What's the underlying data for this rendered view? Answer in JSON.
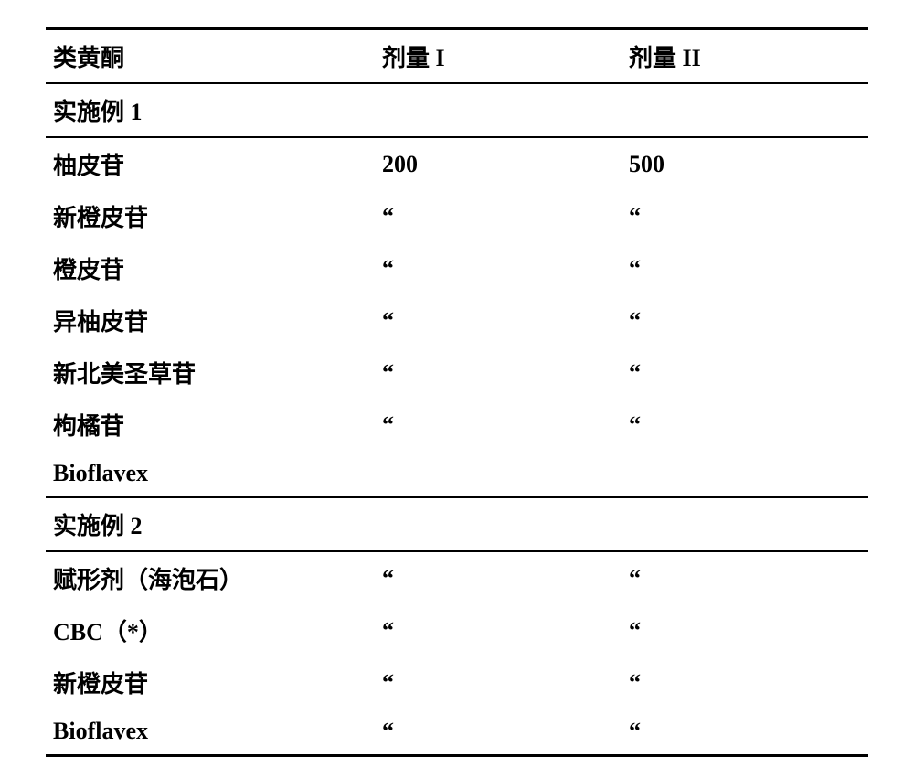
{
  "table": {
    "headers": {
      "col1": "类黄酮",
      "col2": "剂量 I",
      "col3": "剂量 II"
    },
    "section1": {
      "title": "实施例 1",
      "rows": [
        {
          "name": "柚皮苷",
          "dose1": "200",
          "dose2": "500"
        },
        {
          "name": "新橙皮苷",
          "dose1": "“",
          "dose2": "“"
        },
        {
          "name": "橙皮苷",
          "dose1": "“",
          "dose2": "“"
        },
        {
          "name": "异柚皮苷",
          "dose1": "“",
          "dose2": "“"
        },
        {
          "name": "新北美圣草苷",
          "dose1": "“",
          "dose2": "“"
        },
        {
          "name": "枸橘苷",
          "dose1": "“",
          "dose2": "“"
        },
        {
          "name": "Bioflavex",
          "dose1": "",
          "dose2": ""
        }
      ]
    },
    "section2": {
      "title": "实施例 2",
      "rows": [
        {
          "name": "赋形剂（海泡石）",
          "dose1": "“",
          "dose2": "“"
        },
        {
          "name": "CBC（*）",
          "dose1": "“",
          "dose2": "“"
        },
        {
          "name": "新橙皮苷",
          "dose1": "“",
          "dose2": "“"
        },
        {
          "name": "Bioflavex",
          "dose1": "“",
          "dose2": "“"
        }
      ]
    }
  },
  "styling": {
    "font_size": 26,
    "font_weight": "bold",
    "text_color": "#000000",
    "background_color": "#ffffff",
    "border_color": "#000000",
    "top_border_width": 3,
    "section_border_width": 2,
    "bottom_border_width": 3,
    "col_widths": [
      "40%",
      "30%",
      "30%"
    ],
    "cell_padding": "10px 8px"
  }
}
